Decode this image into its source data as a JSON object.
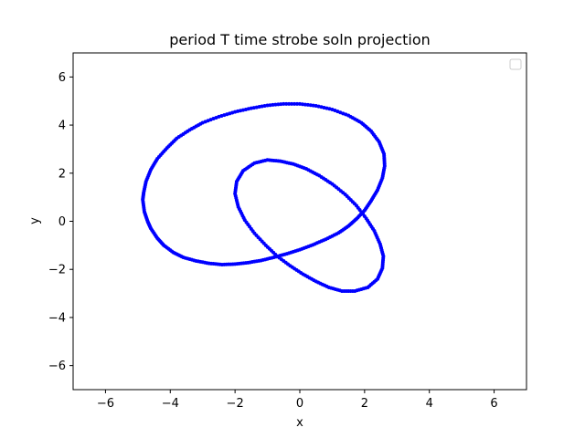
{
  "chart_data": {
    "type": "scatter",
    "title": "period T time strobe soln projection",
    "xlabel": "x",
    "ylabel": "y",
    "xlim": [
      -7,
      7
    ],
    "ylim": [
      -7,
      7
    ],
    "xticks": [
      -6,
      -4,
      -2,
      0,
      2,
      4,
      6
    ],
    "yticks": [
      -6,
      -4,
      -2,
      0,
      2,
      4,
      6
    ],
    "xtick_labels": [
      "−6",
      "−4",
      "−2",
      "0",
      "2",
      "4",
      "6"
    ],
    "ytick_labels": [
      "−6",
      "−4",
      "−2",
      "0",
      "2",
      "4",
      "6"
    ],
    "grid": false,
    "legend": "upper right (empty)",
    "series": [
      {
        "color": "#0000ff",
        "marker": "dot",
        "points": [
          [
            -4.85,
            0.9
          ],
          [
            -4.8,
            0.4
          ],
          [
            -4.7,
            0.0
          ],
          [
            -4.6,
            -0.3
          ],
          [
            -4.4,
            -0.7
          ],
          [
            -4.2,
            -1.0
          ],
          [
            -3.9,
            -1.3
          ],
          [
            -3.6,
            -1.5
          ],
          [
            -3.2,
            -1.65
          ],
          [
            -2.8,
            -1.75
          ],
          [
            -2.4,
            -1.8
          ],
          [
            -2.0,
            -1.78
          ],
          [
            -1.6,
            -1.72
          ],
          [
            -1.2,
            -1.63
          ],
          [
            -0.8,
            -1.5
          ],
          [
            -0.4,
            -1.35
          ],
          [
            0.0,
            -1.18
          ],
          [
            0.4,
            -0.98
          ],
          [
            0.8,
            -0.75
          ],
          [
            1.2,
            -0.48
          ],
          [
            1.5,
            -0.2
          ],
          [
            1.75,
            0.1
          ],
          [
            2.0,
            0.45
          ],
          [
            2.2,
            0.85
          ],
          [
            2.4,
            1.3
          ],
          [
            2.55,
            1.8
          ],
          [
            2.62,
            2.3
          ],
          [
            2.6,
            2.8
          ],
          [
            2.45,
            3.3
          ],
          [
            2.2,
            3.75
          ],
          [
            1.9,
            4.1
          ],
          [
            1.5,
            4.4
          ],
          [
            1.0,
            4.65
          ],
          [
            0.5,
            4.8
          ],
          [
            0.0,
            4.88
          ],
          [
            -0.5,
            4.88
          ],
          [
            -1.0,
            4.82
          ],
          [
            -1.5,
            4.7
          ],
          [
            -2.0,
            4.55
          ],
          [
            -2.5,
            4.35
          ],
          [
            -3.0,
            4.1
          ],
          [
            -3.4,
            3.8
          ],
          [
            -3.8,
            3.45
          ],
          [
            -4.1,
            3.05
          ],
          [
            -4.4,
            2.6
          ],
          [
            -4.6,
            2.15
          ],
          [
            -4.75,
            1.65
          ],
          [
            -4.82,
            1.2
          ]
        ]
      },
      {
        "color": "#0000ff",
        "marker": "dot",
        "points": [
          [
            -1.0,
            2.55
          ],
          [
            -0.6,
            2.5
          ],
          [
            -0.2,
            2.38
          ],
          [
            0.2,
            2.18
          ],
          [
            0.6,
            1.9
          ],
          [
            1.0,
            1.55
          ],
          [
            1.4,
            1.12
          ],
          [
            1.75,
            0.65
          ],
          [
            2.05,
            0.12
          ],
          [
            2.3,
            -0.4
          ],
          [
            2.48,
            -0.95
          ],
          [
            2.58,
            -1.45
          ],
          [
            2.55,
            -1.95
          ],
          [
            2.4,
            -2.4
          ],
          [
            2.1,
            -2.75
          ],
          [
            1.7,
            -2.9
          ],
          [
            1.3,
            -2.9
          ],
          [
            0.9,
            -2.75
          ],
          [
            0.5,
            -2.5
          ],
          [
            0.1,
            -2.2
          ],
          [
            -0.3,
            -1.85
          ],
          [
            -0.7,
            -1.45
          ],
          [
            -1.05,
            -1.0
          ],
          [
            -1.4,
            -0.5
          ],
          [
            -1.7,
            0.05
          ],
          [
            -1.9,
            0.6
          ],
          [
            -2.0,
            1.15
          ],
          [
            -1.95,
            1.65
          ],
          [
            -1.75,
            2.1
          ],
          [
            -1.4,
            2.42
          ]
        ]
      }
    ]
  }
}
